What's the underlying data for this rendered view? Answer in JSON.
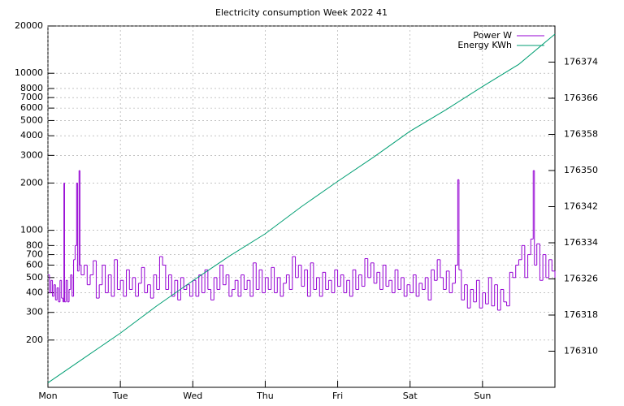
{
  "chart_data": {
    "type": "line",
    "step": true,
    "title": "Electricity consumption Week 2022 41",
    "log_y": true,
    "grid": true,
    "legend": "top-right",
    "xlim": [
      0,
      168
    ],
    "xticks": [
      {
        "value": 0,
        "label": "Mon"
      },
      {
        "value": 24,
        "label": "Tue"
      },
      {
        "value": 48,
        "label": "Wed"
      },
      {
        "value": 72,
        "label": "Thu"
      },
      {
        "value": 96,
        "label": "Fri"
      },
      {
        "value": 120,
        "label": "Sat"
      },
      {
        "value": 144,
        "label": "Sun"
      }
    ],
    "ylim": [
      100,
      20000
    ],
    "yticks": [
      200,
      300,
      400,
      500,
      600,
      700,
      800,
      1000,
      2000,
      3000,
      4000,
      5000,
      6000,
      7000,
      8000,
      10000,
      20000
    ],
    "y2lim": [
      176302,
      176382
    ],
    "y2ticks": [
      176310,
      176318,
      176326,
      176334,
      176342,
      176350,
      176358,
      176366,
      176374
    ],
    "series": [
      {
        "name": "Power W",
        "color": "#9400d3",
        "x": [
          0,
          0.5,
          1,
          1.5,
          2,
          2.5,
          3,
          3.5,
          4,
          4.5,
          5,
          5.3,
          5.5,
          6,
          6.5,
          7,
          7.5,
          8,
          8.5,
          9,
          9.5,
          9.8,
          10.3,
          10.6,
          11,
          12,
          13,
          14,
          15,
          16,
          17,
          18,
          19,
          20,
          21,
          22,
          23,
          24,
          25,
          26,
          27,
          28,
          29,
          30,
          31,
          32,
          33,
          34,
          35,
          36,
          37,
          38,
          39,
          40,
          41,
          42,
          43,
          44,
          45,
          46,
          47,
          48,
          49,
          50,
          51,
          52,
          53,
          54,
          55,
          56,
          57,
          58,
          59,
          60,
          61,
          62,
          63,
          64,
          65,
          66,
          67,
          68,
          69,
          70,
          71,
          72,
          73,
          74,
          75,
          76,
          77,
          78,
          79,
          80,
          81,
          82,
          83,
          84,
          85,
          86,
          87,
          88,
          89,
          90,
          91,
          92,
          93,
          94,
          95,
          96,
          97,
          98,
          99,
          100,
          101,
          102,
          103,
          104,
          105,
          106,
          107,
          108,
          109,
          110,
          111,
          112,
          113,
          114,
          115,
          116,
          117,
          118,
          119,
          120,
          121,
          122,
          123,
          124,
          125,
          126,
          127,
          128,
          129,
          130,
          131,
          132,
          133,
          134,
          135,
          135.8,
          136.2,
          137,
          138,
          139,
          140,
          141,
          142,
          143,
          144,
          145,
          146,
          147,
          148,
          149,
          150,
          151,
          152,
          153,
          154,
          155,
          156,
          157,
          158,
          159,
          160,
          160.8,
          161.2,
          162,
          163,
          164,
          165,
          166,
          167,
          168
        ],
        "values": [
          520,
          400,
          480,
          380,
          450,
          360,
          430,
          350,
          480,
          370,
          350,
          2000,
          350,
          480,
          350,
          420,
          520,
          380,
          650,
          800,
          2000,
          550,
          2400,
          600,
          520,
          600,
          450,
          520,
          640,
          370,
          450,
          600,
          400,
          520,
          380,
          650,
          420,
          480,
          380,
          560,
          420,
          500,
          380,
          460,
          580,
          400,
          450,
          370,
          520,
          420,
          680,
          600,
          420,
          520,
          380,
          480,
          360,
          500,
          420,
          450,
          380,
          480,
          380,
          520,
          400,
          560,
          420,
          360,
          500,
          420,
          600,
          450,
          520,
          380,
          420,
          480,
          380,
          520,
          420,
          480,
          380,
          620,
          420,
          560,
          400,
          500,
          420,
          580,
          400,
          500,
          380,
          460,
          520,
          420,
          680,
          500,
          600,
          440,
          560,
          380,
          620,
          420,
          500,
          380,
          540,
          420,
          480,
          400,
          560,
          440,
          520,
          400,
          480,
          380,
          560,
          420,
          520,
          440,
          660,
          500,
          620,
          460,
          540,
          420,
          600,
          440,
          480,
          400,
          560,
          420,
          500,
          380,
          450,
          400,
          520,
          380,
          460,
          420,
          500,
          360,
          560,
          480,
          650,
          500,
          420,
          550,
          400,
          460,
          600,
          2100,
          560,
          360,
          450,
          320,
          420,
          350,
          480,
          320,
          400,
          340,
          500,
          330,
          450,
          310,
          420,
          350,
          330,
          540,
          500,
          600,
          650,
          800,
          500,
          700,
          880,
          2400,
          600,
          820,
          480,
          700,
          500,
          650,
          550,
          500
        ]
      },
      {
        "name": "Energy KWh",
        "color": "#009e73",
        "axis": "y2",
        "x": [
          0,
          12,
          24,
          36,
          48,
          60,
          72,
          84,
          96,
          108,
          120,
          132,
          144,
          156,
          168
        ],
        "values": [
          176303,
          176308.5,
          176314,
          176320,
          176325.6,
          176331,
          176336,
          176342,
          176347.6,
          176353,
          176358.7,
          176363.5,
          176368.6,
          176373.5,
          176380.2
        ]
      }
    ]
  }
}
